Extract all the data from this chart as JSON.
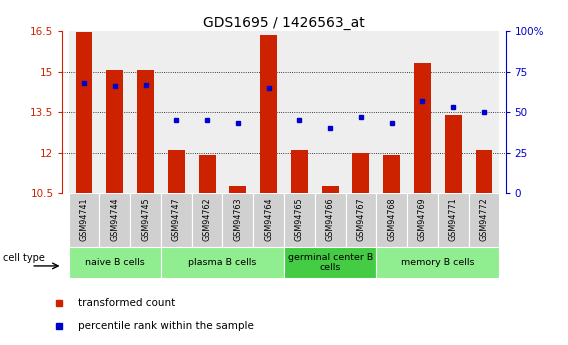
{
  "title": "GDS1695 / 1426563_at",
  "samples": [
    "GSM94741",
    "GSM94744",
    "GSM94745",
    "GSM94747",
    "GSM94762",
    "GSM94763",
    "GSM94764",
    "GSM94765",
    "GSM94766",
    "GSM94767",
    "GSM94768",
    "GSM94769",
    "GSM94771",
    "GSM94772"
  ],
  "transformed_count": [
    16.45,
    15.05,
    15.05,
    12.1,
    11.9,
    10.75,
    16.35,
    12.1,
    10.75,
    12.0,
    11.9,
    15.3,
    13.4,
    12.1
  ],
  "percentile_rank": [
    68,
    66,
    67,
    45,
    45,
    43,
    65,
    45,
    40,
    47,
    43,
    57,
    53,
    50
  ],
  "ylim_left": [
    10.5,
    16.5
  ],
  "ylim_right": [
    0,
    100
  ],
  "yticks_left": [
    10.5,
    12.0,
    13.5,
    15.0,
    16.5
  ],
  "yticks_right": [
    0,
    25,
    50,
    75,
    100
  ],
  "ytick_labels_left": [
    "10.5",
    "12",
    "13.5",
    "15",
    "16.5"
  ],
  "ytick_labels_right": [
    "0",
    "25",
    "50",
    "75",
    "100%"
  ],
  "bar_color": "#cc2200",
  "dot_color": "#0000cc",
  "sample_bg_color": "#d0d0d0",
  "cell_type_groups": [
    {
      "label": "naive B cells",
      "start": 0,
      "end": 2
    },
    {
      "label": "plasma B cells",
      "start": 3,
      "end": 6
    },
    {
      "label": "germinal center B\ncells",
      "start": 7,
      "end": 9
    },
    {
      "label": "memory B cells",
      "start": 10,
      "end": 13
    }
  ],
  "group_color_light": "#90ee90",
  "group_color_medium": "#44cc44",
  "legend_bar_label": "transformed count",
  "legend_dot_label": "percentile rank within the sample",
  "cell_type_label": "cell type"
}
